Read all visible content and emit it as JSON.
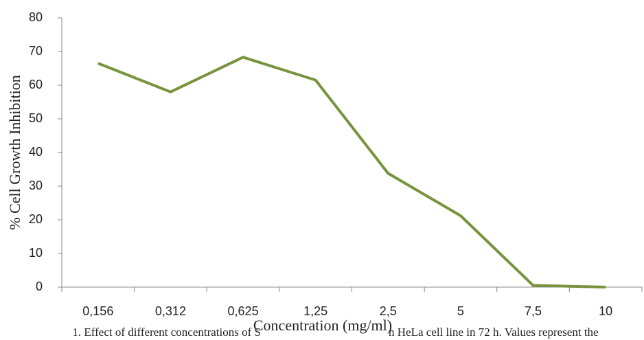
{
  "chart_data": {
    "type": "line",
    "categories": [
      "0,156",
      "0,312",
      "0,625",
      "1,25",
      "2,5",
      "5",
      "7,5",
      "10"
    ],
    "series": [
      {
        "name": null,
        "color": "#77933c",
        "values": [
          66.5,
          58,
          68.3,
          61.5,
          33.8,
          21.2,
          0.5,
          0
        ]
      }
    ],
    "ylim": [
      0,
      80
    ],
    "yticks": [
      0,
      10,
      20,
      30,
      40,
      50,
      60,
      70,
      80
    ],
    "xlabel": "Concentration (mg/ml)",
    "ylabel": "% Cell Growth Inhibition",
    "grid": false
  },
  "caption": [
    "1. Effect of different concentrations of S",
    "n HeLa cell line in 72 h. Values represent the"
  ]
}
